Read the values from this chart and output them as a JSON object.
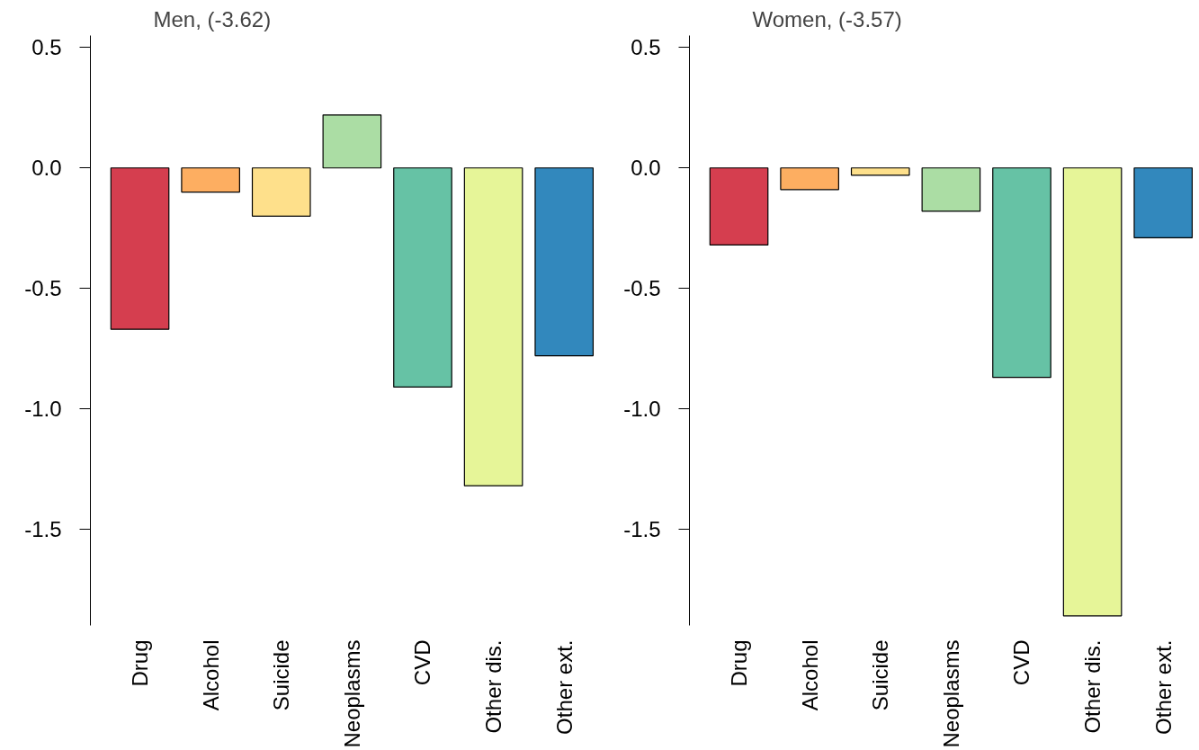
{
  "chart_data": [
    {
      "type": "bar",
      "title": "Men, (-3.62)",
      "categories": [
        "Drug",
        "Alcohol",
        "Suicide",
        "Neoplasms",
        "CVD",
        "Other dis.",
        "Other ext."
      ],
      "values": [
        -0.67,
        -0.1,
        -0.2,
        0.22,
        -0.91,
        -1.32,
        -0.78
      ],
      "colors": [
        "#d53e4f",
        "#fdae61",
        "#fee08b",
        "#abdda4",
        "#66c2a5",
        "#e6f598",
        "#3288bd"
      ],
      "ylim": [
        -1.9,
        0.55
      ],
      "yticks": [
        {
          "value": -1.5,
          "label": "-1.5"
        },
        {
          "value": -1,
          "label": "-1.0"
        },
        {
          "value": -0.5,
          "label": "-0.5"
        },
        {
          "value": 0,
          "label": "0.0"
        },
        {
          "value": 0.5,
          "label": "0.5"
        }
      ],
      "grid": false
    },
    {
      "type": "bar",
      "title": "Women, (-3.57)",
      "categories": [
        "Drug",
        "Alcohol",
        "Suicide",
        "Neoplasms",
        "CVD",
        "Other dis.",
        "Other ext."
      ],
      "values": [
        -0.32,
        -0.09,
        -0.03,
        -0.18,
        -0.87,
        -1.86,
        -0.29
      ],
      "colors": [
        "#d53e4f",
        "#fdae61",
        "#fee08b",
        "#abdda4",
        "#66c2a5",
        "#e6f598",
        "#3288bd"
      ],
      "ylim": [
        -1.9,
        0.55
      ],
      "yticks": [
        {
          "value": -1.5,
          "label": "-1.5"
        },
        {
          "value": -1,
          "label": "-1.0"
        },
        {
          "value": -0.5,
          "label": "-0.5"
        },
        {
          "value": 0,
          "label": "0.0"
        },
        {
          "value": 0.5,
          "label": "0.5"
        }
      ],
      "grid": false
    }
  ]
}
